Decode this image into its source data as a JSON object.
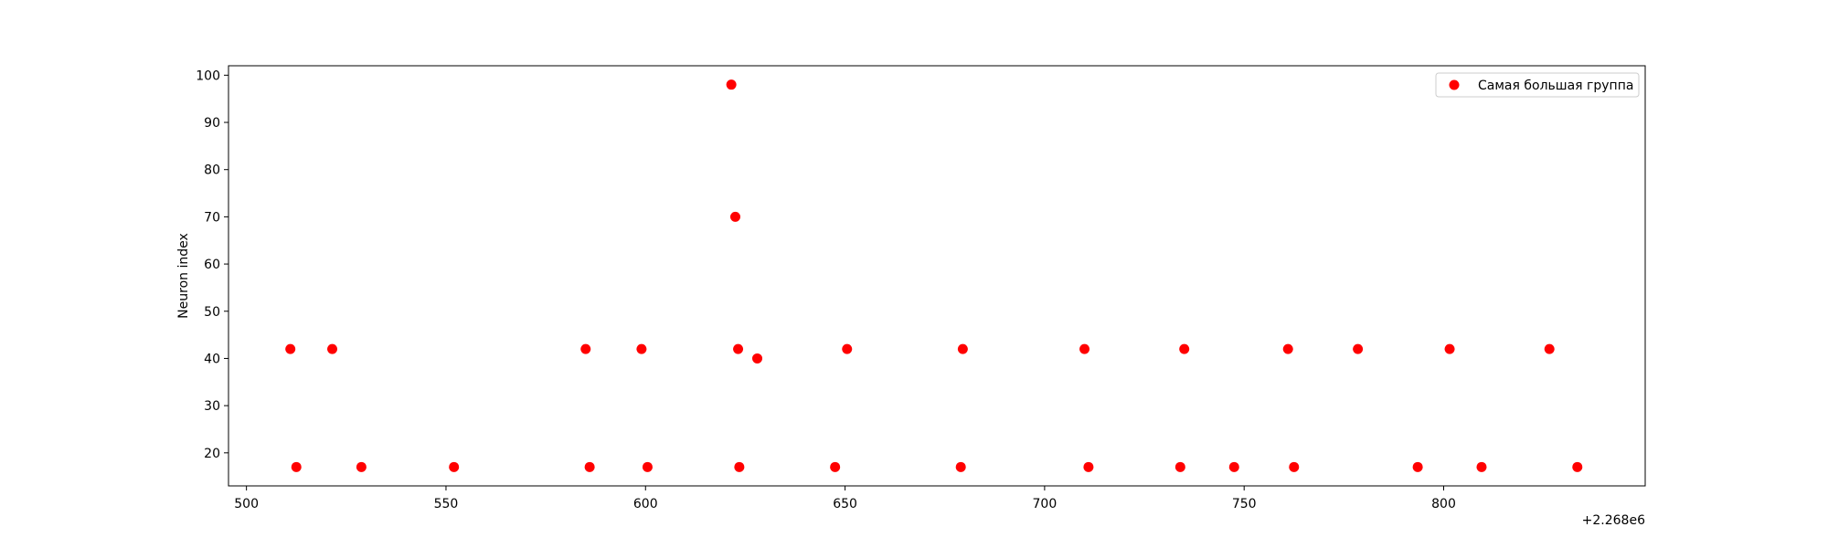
{
  "chart_data": {
    "type": "scatter",
    "title": "",
    "xlabel": "",
    "ylabel": "Neuron index",
    "x_offset_label": "+2.268e6",
    "xlim": [
      495.5,
      850.5
    ],
    "ylim": [
      13,
      102
    ],
    "xticks": [
      500,
      550,
      600,
      650,
      700,
      750,
      800
    ],
    "yticks": [
      20,
      30,
      40,
      50,
      60,
      70,
      80,
      90,
      100
    ],
    "grid": false,
    "legend_position": "top-right",
    "series": [
      {
        "name": "Самая большая группа",
        "color": "#ff0000",
        "x": [
          511,
          512.5,
          521.5,
          528.8,
          552,
          585,
          586,
          599,
          600.5,
          621.5,
          622.5,
          623.2,
          623.5,
          628,
          647.5,
          650.5,
          679,
          679.5,
          710,
          711,
          734,
          735,
          747.5,
          761,
          762.5,
          778.5,
          793.5,
          801.5,
          809.5,
          826.5,
          833.5
        ],
        "y": [
          42,
          17,
          42,
          17,
          17,
          42,
          17,
          42,
          17,
          98,
          70,
          42,
          17,
          40,
          17,
          42,
          17,
          42,
          42,
          17,
          17,
          42,
          17,
          42,
          17,
          42,
          17,
          42,
          17,
          42,
          17
        ]
      }
    ]
  }
}
